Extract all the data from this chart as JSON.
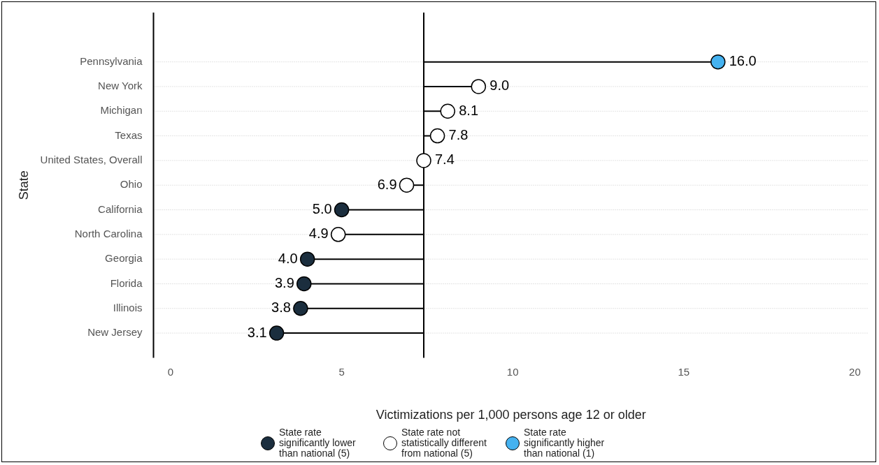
{
  "chart_data": {
    "type": "lollipop",
    "orientation": "horizontal",
    "xlabel": "Victimizations per 1,000 persons age 12 or older",
    "ylabel": "State",
    "categories": [
      "Pennsylvania",
      "New York",
      "Michigan",
      "Texas",
      "United States, Overall",
      "Ohio",
      "California",
      "North Carolina",
      "Georgia",
      "Florida",
      "Illinois",
      "New Jersey"
    ],
    "series": [
      {
        "name": "State rate significantly lower than national (5)",
        "color": "#1b2e3e",
        "values": [
          null,
          null,
          null,
          null,
          null,
          null,
          5.0,
          null,
          4.0,
          3.9,
          3.8,
          3.1
        ],
        "value_labels": [
          null,
          null,
          null,
          null,
          null,
          null,
          "5.0",
          null,
          "4.0",
          "3.9",
          "3.8",
          "3.1"
        ]
      },
      {
        "name": "State rate not statistically different from national (5)",
        "color": "#ffffff",
        "values": [
          null,
          9.0,
          8.1,
          7.8,
          7.4,
          6.9,
          null,
          4.9,
          null,
          null,
          null,
          null
        ],
        "value_labels": [
          null,
          "9.0",
          "8.1",
          "7.8",
          "7.4",
          "6.9",
          null,
          "4.9",
          null,
          null,
          null,
          null
        ]
      },
      {
        "name": "State rate significantly higher than national (1)",
        "color": "#45b2f0",
        "values": [
          16.0,
          null,
          null,
          null,
          null,
          null,
          null,
          null,
          null,
          null,
          null,
          null
        ],
        "value_labels": [
          "16.0",
          null,
          null,
          null,
          null,
          null,
          null,
          null,
          null,
          null,
          null,
          null
        ]
      }
    ],
    "xlim": [
      -0.5,
      20.4
    ],
    "xticks": [
      0,
      5,
      10,
      15,
      20
    ],
    "ref_lines": [
      {
        "axis": "x",
        "value": 7.4,
        "color": "#000000"
      }
    ],
    "grid": "y",
    "legend": "bottom",
    "marker": "circle"
  }
}
